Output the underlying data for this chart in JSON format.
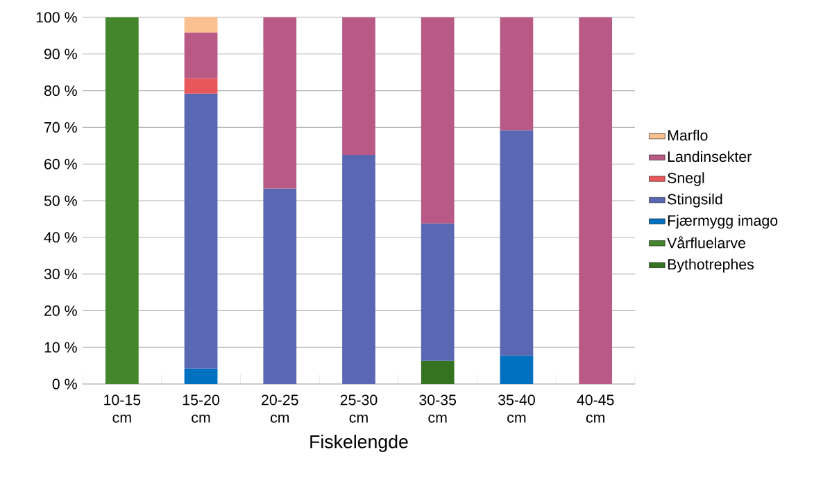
{
  "chart_data": {
    "type": "bar",
    "stacked": true,
    "xlabel": "Fiskelengde",
    "categories": [
      "10-15 cm",
      "15-20 cm",
      "20-25 cm",
      "25-30 cm",
      "30-35 cm",
      "35-40 cm",
      "40-45 cm"
    ],
    "series": [
      {
        "name": "Bythotrephes",
        "color": "#367321",
        "values": [
          null,
          null,
          null,
          null,
          6.3,
          null,
          null
        ]
      },
      {
        "name": "Vårfluelarve",
        "color": "#43862b",
        "values": [
          100,
          null,
          null,
          null,
          null,
          null,
          null
        ]
      },
      {
        "name": "Fjærmygg imago",
        "color": "#0070c0",
        "values": [
          null,
          4.2,
          null,
          null,
          null,
          7.7,
          null
        ]
      },
      {
        "name": "Stingsild",
        "color": "#5a68b4",
        "values": [
          null,
          75,
          53.3,
          62.5,
          37.5,
          61.5,
          null
        ]
      },
      {
        "name": "Snegl",
        "color": "#e8585a",
        "values": [
          null,
          4.2,
          null,
          null,
          null,
          null,
          null
        ]
      },
      {
        "name": "Landinsekter",
        "color": "#b85a85",
        "values": [
          null,
          12.5,
          46.7,
          37.5,
          56.2,
          30.8,
          100
        ]
      },
      {
        "name": "Marflo",
        "color": "#fac090",
        "values": [
          null,
          4.2,
          null,
          null,
          null,
          null,
          null
        ]
      }
    ],
    "ylim": [
      0,
      100
    ],
    "yticks": [
      {
        "value": 0,
        "label": "0 %"
      },
      {
        "value": 10,
        "label": "10 %"
      },
      {
        "value": 20,
        "label": "20 %"
      },
      {
        "value": 30,
        "label": "30 %"
      },
      {
        "value": 40,
        "label": "40 %"
      },
      {
        "value": 50,
        "label": "50 %"
      },
      {
        "value": 60,
        "label": "60 %"
      },
      {
        "value": 70,
        "label": "70 %"
      },
      {
        "value": 80,
        "label": "80 %"
      },
      {
        "value": 90,
        "label": "90 %"
      },
      {
        "value": 100,
        "label": "100 %"
      }
    ],
    "grid": "y",
    "legend": "right"
  }
}
